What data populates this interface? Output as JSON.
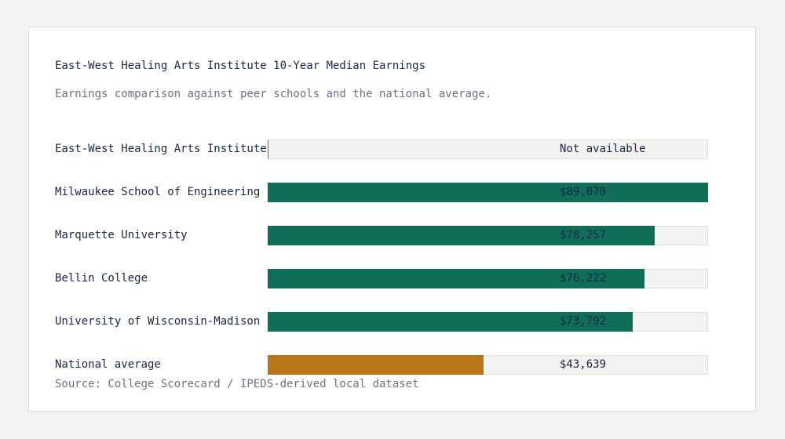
{
  "chart_data": {
    "type": "bar",
    "orientation": "horizontal",
    "title": "East-West Healing Arts Institute 10-Year Median Earnings",
    "subtitle": "Earnings comparison against peer schools and the national average.",
    "source": "Source: College Scorecard / IPEDS-derived local dataset",
    "xlim": [
      0,
      89070
    ],
    "categories": [
      "East-West Healing Arts Institute",
      "Milwaukee School of Engineering",
      "Marquette University",
      "Bellin College",
      "University of Wisconsin-Madison",
      "National average"
    ],
    "values": [
      null,
      89070,
      78257,
      76222,
      73792,
      43639
    ],
    "value_labels": [
      "Not available",
      "$89,070",
      "$78,257",
      "$76,222",
      "$73,792",
      "$43,639"
    ],
    "colors": {
      "peer": "#0f6e57",
      "national": "#b97618",
      "track": "#f3f3f1"
    }
  }
}
